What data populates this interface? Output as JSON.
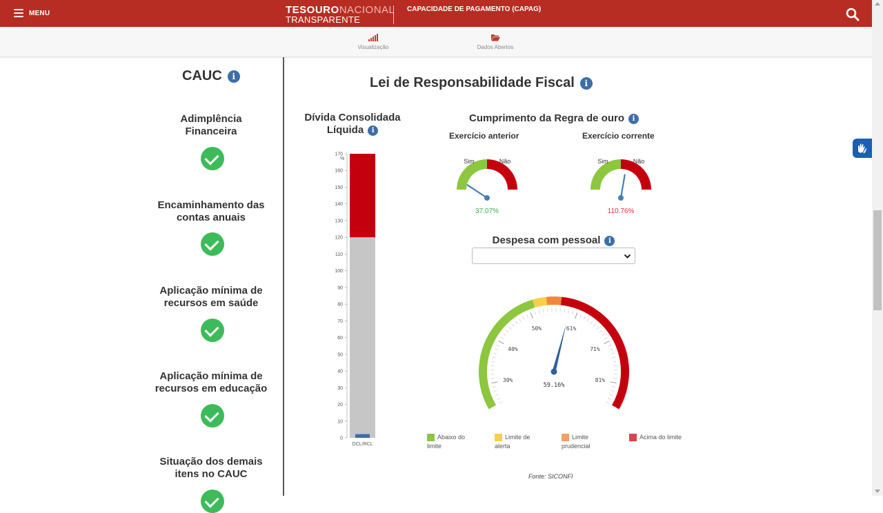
{
  "header": {
    "menu_label": "MENU",
    "logo_word_1": "TESOURO",
    "logo_word_2": "NACIONAL",
    "logo_word_3": "TRANSPARENTE",
    "page_tag": "CAPACIDADE DE PAGAMENTO (CAPAG)",
    "accent_color": "#b72d23"
  },
  "subnav": [
    {
      "label": "Visualização",
      "icon": "bar-signal-icon"
    },
    {
      "label": "Dados Abertos",
      "icon": "folder-open-icon"
    }
  ],
  "sidebar": {
    "title": "CAUC",
    "items": [
      {
        "label_1": "Adimplência",
        "label_2": "Financeira",
        "status": "ok"
      },
      {
        "label_1": "Encaminhamento das",
        "label_2": "contas anuais",
        "status": "ok"
      },
      {
        "label_1": "Aplicação mínima de",
        "label_2": "recursos em saúde",
        "status": "ok"
      },
      {
        "label_1": "Aplicação mínima de",
        "label_2": "recursos em educação",
        "status": "ok"
      },
      {
        "label_1": "Situação dos demais",
        "label_2": "itens no CAUC",
        "status": "ok"
      }
    ]
  },
  "main": {
    "title": "Lei de Responsabilidade Fiscal",
    "divida": {
      "title_1": "Dívida Consolidada",
      "title_2": "Líquida"
    },
    "regra_ouro": {
      "title": "Cumprimento da Regra de ouro",
      "anterior_label": "Exercício anterior",
      "corrente_label": "Exercício corrente"
    },
    "despesa": {
      "title": "Despesa com pessoal",
      "select_value": ""
    },
    "fonte": "Fonte: SICONFI"
  },
  "chart_data": [
    {
      "type": "bar",
      "categories": [
        "DCL/RCL"
      ],
      "values": [
        2.23
      ],
      "value_label": "2.23%",
      "ylabel": "%",
      "ylim": [
        0,
        170
      ],
      "yticks": [
        0,
        10,
        20,
        30,
        40,
        50,
        60,
        70,
        80,
        90,
        100,
        110,
        120,
        130,
        140,
        150,
        160,
        170
      ],
      "bands": [
        {
          "from": 0,
          "to": 120,
          "color": "#c6c6c6"
        },
        {
          "from": 120,
          "to": 170,
          "color": "#c4000f"
        }
      ],
      "bar_color": "#3d6ea8"
    },
    {
      "type": "gauge",
      "label": "Exercício anterior",
      "left_label": "Sim",
      "right_label": "Não",
      "value": 37.07,
      "value_label": "37.07%",
      "value_color": "#3aaa4e",
      "range": [
        0,
        200
      ],
      "threshold": 100
    },
    {
      "type": "gauge",
      "label": "Exercício corrente",
      "left_label": "Sim",
      "right_label": "Não",
      "value": 110.76,
      "value_label": "110.76%",
      "value_color": "#d9343e",
      "range": [
        0,
        200
      ],
      "threshold": 100
    },
    {
      "type": "gauge",
      "label": "Despesa com pessoal",
      "value": 59.16,
      "value_label": "59.16%",
      "range": [
        25,
        86
      ],
      "tick_labels": [
        "30%",
        "40%",
        "50%",
        "61%",
        "71%",
        "81%"
      ],
      "tick_values": [
        30,
        40,
        50,
        61,
        71,
        81
      ],
      "bands": [
        {
          "from": 25,
          "to": 51.3,
          "color": "#8dc63f"
        },
        {
          "from": 51.3,
          "to": 54,
          "color": "#f7d046"
        },
        {
          "from": 54,
          "to": 57,
          "color": "#f0883c"
        },
        {
          "from": 57,
          "to": 86,
          "color": "#c4000f"
        }
      ],
      "legend": [
        {
          "label": "Abaixo do limite",
          "color": "#8dc63f"
        },
        {
          "label": "Limite de alerta",
          "color": "#f7d046"
        },
        {
          "label": "Limite prudencial",
          "color": "#f0a06a"
        },
        {
          "label": "Acima do limite",
          "color": "#d9434f"
        }
      ]
    }
  ]
}
